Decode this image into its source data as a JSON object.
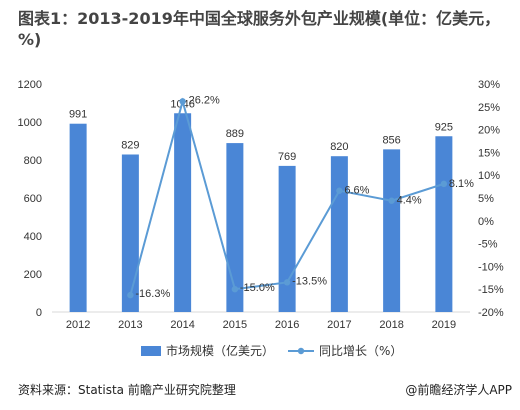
{
  "chart_data": {
    "type": "bar+line",
    "title": "图表1：2013-2019年中国全球服务外包产业规模(单位：亿美元，%)",
    "categories": [
      "2012",
      "2013",
      "2014",
      "2015",
      "2016",
      "2017",
      "2018",
      "2019"
    ],
    "series": [
      {
        "name": "市场规模（亿美元）",
        "type": "bar",
        "axis": "left",
        "values": [
          991,
          829,
          1046,
          889,
          769,
          820,
          856,
          925
        ],
        "labels": [
          "991",
          "829",
          "1046",
          "889",
          "769",
          "820",
          "856",
          "925"
        ]
      },
      {
        "name": "同比增长（%）",
        "type": "line",
        "axis": "right",
        "values": [
          null,
          -16.3,
          26.2,
          -15.0,
          -13.5,
          6.6,
          4.4,
          8.1
        ],
        "labels": [
          "",
          "-16.3%",
          "26.2%",
          "-15.0%",
          "-13.5%",
          "6.6%",
          "4.4%",
          "8.1%"
        ]
      }
    ],
    "y_left": {
      "min": 0,
      "max": 1200,
      "step": 200,
      "ticks": [
        "0",
        "200",
        "400",
        "600",
        "800",
        "1000",
        "1200"
      ]
    },
    "y_right": {
      "min": -20,
      "max": 30,
      "step": 5,
      "ticks": [
        "-20%",
        "-15%",
        "-10%",
        "-5%",
        "0%",
        "5%",
        "10%",
        "15%",
        "20%",
        "25%",
        "30%"
      ]
    },
    "colors": {
      "bar": "#4a86d6",
      "line": "#5b9bd5",
      "axis": "#d9d9d9",
      "text": "#333333"
    },
    "grid": false,
    "legend_position": "bottom"
  },
  "footer": {
    "source": "资料来源：Statista 前瞻产业研究院整理",
    "brand": "@前瞻经济学人APP"
  }
}
